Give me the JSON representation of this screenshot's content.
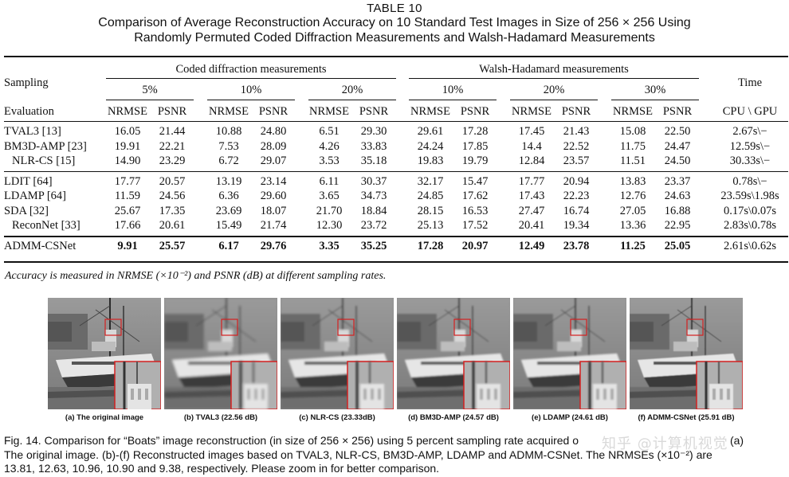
{
  "caption": {
    "number": "TABLE 10",
    "line1": "Comparison of Average Reconstruction Accuracy on 10 Standard Test Images in Size of 256 × 256 Using",
    "line2": "Randomly Permuted Coded Diffraction Measurements and Walsh-Hadamard Measurements"
  },
  "table": {
    "group_headers": [
      "Coded diffraction measurements",
      "Walsh-Hadamard measurements"
    ],
    "rates": [
      "5%",
      "10%",
      "20%",
      "10%",
      "20%",
      "30%"
    ],
    "sampling_label": "Sampling",
    "evaluation_label": "Evaluation",
    "time_label": "Time",
    "time_sub": "CPU \\ GPU",
    "metric_labels": [
      "NRMSE",
      "PSNR",
      "NRMSE",
      "PSNR",
      "NRMSE",
      "PSNR",
      "NRMSE",
      "PSNR",
      "NRMSE",
      "PSNR",
      "NRMSE",
      "PSNR"
    ],
    "rows": [
      {
        "method": "TVAL3 [13]",
        "values": [
          "16.05",
          "21.44",
          "10.88",
          "24.80",
          "6.51",
          "29.30",
          "29.61",
          "17.28",
          "17.45",
          "21.43",
          "15.08",
          "22.50"
        ],
        "time": "2.67s\\−"
      },
      {
        "method": "BM3D-AMP [23]",
        "values": [
          "19.91",
          "22.21",
          "7.53",
          "28.09",
          "4.26",
          "33.83",
          "24.24",
          "17.85",
          "14.4",
          "22.52",
          "11.75",
          "24.47"
        ],
        "time": "12.59s\\−"
      },
      {
        "method": "NLR-CS [15]",
        "values": [
          "14.90",
          "23.29",
          "6.72",
          "29.07",
          "3.53",
          "35.18",
          "19.83",
          "19.79",
          "12.84",
          "23.57",
          "11.51",
          "24.50"
        ],
        "time": "30.33s\\−"
      },
      {
        "method": "LDIT [64]",
        "values": [
          "17.77",
          "20.57",
          "13.19",
          "23.14",
          "6.11",
          "30.37",
          "32.17",
          "15.47",
          "17.77",
          "20.94",
          "13.83",
          "23.37"
        ],
        "time": "0.78s\\−"
      },
      {
        "method": "LDAMP [64]",
        "values": [
          "11.59",
          "24.56",
          "6.36",
          "29.60",
          "3.65",
          "34.73",
          "24.85",
          "17.62",
          "17.43",
          "22.23",
          "12.76",
          "24.63"
        ],
        "time": "23.59s\\1.98s"
      },
      {
        "method": "SDA [32]",
        "values": [
          "25.67",
          "17.35",
          "23.69",
          "18.07",
          "21.70",
          "18.84",
          "28.15",
          "16.53",
          "27.47",
          "16.74",
          "27.05",
          "16.88"
        ],
        "time": "0.17s\\0.07s"
      },
      {
        "method": "ReconNet [33]",
        "values": [
          "17.66",
          "20.61",
          "15.49",
          "21.74",
          "12.30",
          "23.72",
          "25.13",
          "17.52",
          "20.41",
          "19.34",
          "13.36",
          "22.95"
        ],
        "time": "2.83s\\0.78s"
      },
      {
        "method": "ADMM-CSNet",
        "values": [
          "9.91",
          "25.57",
          "6.17",
          "29.76",
          "3.35",
          "35.25",
          "17.28",
          "20.97",
          "12.49",
          "23.78",
          "11.25",
          "25.05"
        ],
        "time": "2.61s\\0.62s"
      }
    ]
  },
  "footnote": "Accuracy is measured in NRMSE (×10⁻²) and PSNR (dB) at different sampling rates.",
  "figure": {
    "panels": [
      "(a) The original image",
      "(b) TVAL3 (22.56 dB)",
      "(c) NLR-CS (23.33dB)",
      "(d) BM3D-AMP (24.57 dB)",
      "(e) LDAMP (24.61 dB)",
      "(f) ADMM-CSNet (25.91 dB)"
    ],
    "caption_line1": "Fig. 14. Comparison for “Boats” image reconstruction (in size of 256 × 256) using 5 percent sampling rate acquired o",
    "caption_line1_end": "(a)",
    "caption_line2": "The original image. (b)-(f) Reconstructed images based on TVAL3, NLR-CS, BM3D-AMP, LDAMP and ADMM-CSNet. The NRMSEs (×10⁻²) are",
    "caption_line3": "13.81, 12.63, 10.96, 10.90 and 9.38, respectively. Please zoom in for better comparison.",
    "watermark": "知乎 @计算机视觉"
  },
  "colors": {
    "zoom_box": "#d42020",
    "rule": "#111111"
  }
}
